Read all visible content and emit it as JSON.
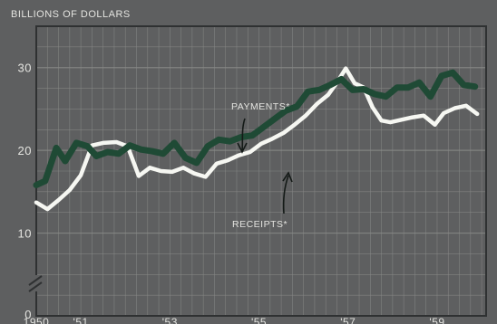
{
  "colors": {
    "panel": "#5e5f60",
    "frame": "#2f3132",
    "grid": "#8a8b89",
    "payments": "#1f4a35",
    "receipts": "#f6f7f2",
    "text": "#e4e4e0"
  },
  "chart_data": {
    "type": "line",
    "ylabel": "BILLIONS OF DOLLARS",
    "ylim": [
      0,
      35
    ],
    "y_axis_break": true,
    "xlim": [
      1950,
      1960.1
    ],
    "grid": true,
    "y_ticks": [
      {
        "value": 0,
        "label": "0"
      },
      {
        "value": 10,
        "label": "10"
      },
      {
        "value": 20,
        "label": "20"
      },
      {
        "value": 30,
        "label": "30"
      }
    ],
    "x_ticks": [
      {
        "value": 1950,
        "label": "1950"
      },
      {
        "value": 1951,
        "label": "'51"
      },
      {
        "value": 1953,
        "label": "'53"
      },
      {
        "value": 1955,
        "label": "'55"
      },
      {
        "value": 1957,
        "label": "'57"
      },
      {
        "value": 1959,
        "label": "'59"
      }
    ],
    "series": [
      {
        "name": "PAYMENTS*",
        "color": "#1f4a35",
        "x": [
          1950.0,
          1950.2,
          1950.45,
          1950.65,
          1950.9,
          1951.15,
          1951.35,
          1951.6,
          1951.85,
          1952.1,
          1952.35,
          1952.6,
          1952.85,
          1953.1,
          1953.35,
          1953.6,
          1953.85,
          1954.1,
          1954.35,
          1954.6,
          1954.85,
          1955.1,
          1955.35,
          1955.6,
          1955.85,
          1956.1,
          1956.35,
          1956.6,
          1956.85,
          1957.1,
          1957.35,
          1957.6,
          1957.85,
          1958.1,
          1958.35,
          1958.6,
          1958.85,
          1959.1,
          1959.35,
          1959.6,
          1959.85
        ],
        "values": [
          15.8,
          16.3,
          20.3,
          18.7,
          20.9,
          20.5,
          19.3,
          19.8,
          19.6,
          20.6,
          20.1,
          19.9,
          19.6,
          20.9,
          19.1,
          18.5,
          20.5,
          21.3,
          21.1,
          21.6,
          21.8,
          22.8,
          23.8,
          24.8,
          25.3,
          27.1,
          27.3,
          27.9,
          28.6,
          27.3,
          27.4,
          26.8,
          26.5,
          27.6,
          27.6,
          28.2,
          26.5,
          29.0,
          29.4,
          27.9,
          27.7
        ],
        "annotation": "PAYMENTS*"
      },
      {
        "name": "RECEIPTS*",
        "color": "#f6f7f2",
        "x": [
          1950.0,
          1950.25,
          1950.5,
          1950.75,
          1951.0,
          1951.25,
          1951.5,
          1951.8,
          1952.05,
          1952.3,
          1952.55,
          1952.8,
          1953.05,
          1953.3,
          1953.55,
          1953.8,
          1954.05,
          1954.3,
          1954.55,
          1954.8,
          1955.05,
          1955.3,
          1955.55,
          1955.8,
          1956.05,
          1956.3,
          1956.55,
          1956.75,
          1956.95,
          1957.15,
          1957.35,
          1957.55,
          1957.75,
          1957.95,
          1958.2,
          1958.45,
          1958.7,
          1958.95,
          1959.15,
          1959.4,
          1959.65,
          1959.9
        ],
        "values": [
          13.7,
          12.9,
          14.0,
          15.2,
          17.0,
          20.6,
          20.9,
          21.0,
          20.5,
          16.9,
          17.9,
          17.5,
          17.4,
          17.9,
          17.2,
          16.8,
          18.4,
          18.8,
          19.4,
          19.8,
          20.8,
          21.4,
          22.1,
          23.1,
          24.2,
          25.6,
          26.7,
          28.2,
          29.9,
          28.1,
          27.6,
          25.2,
          23.6,
          23.4,
          23.7,
          24.0,
          24.2,
          23.1,
          24.5,
          25.1,
          25.4,
          24.4
        ],
        "annotation": "RECEIPTS*"
      }
    ]
  }
}
